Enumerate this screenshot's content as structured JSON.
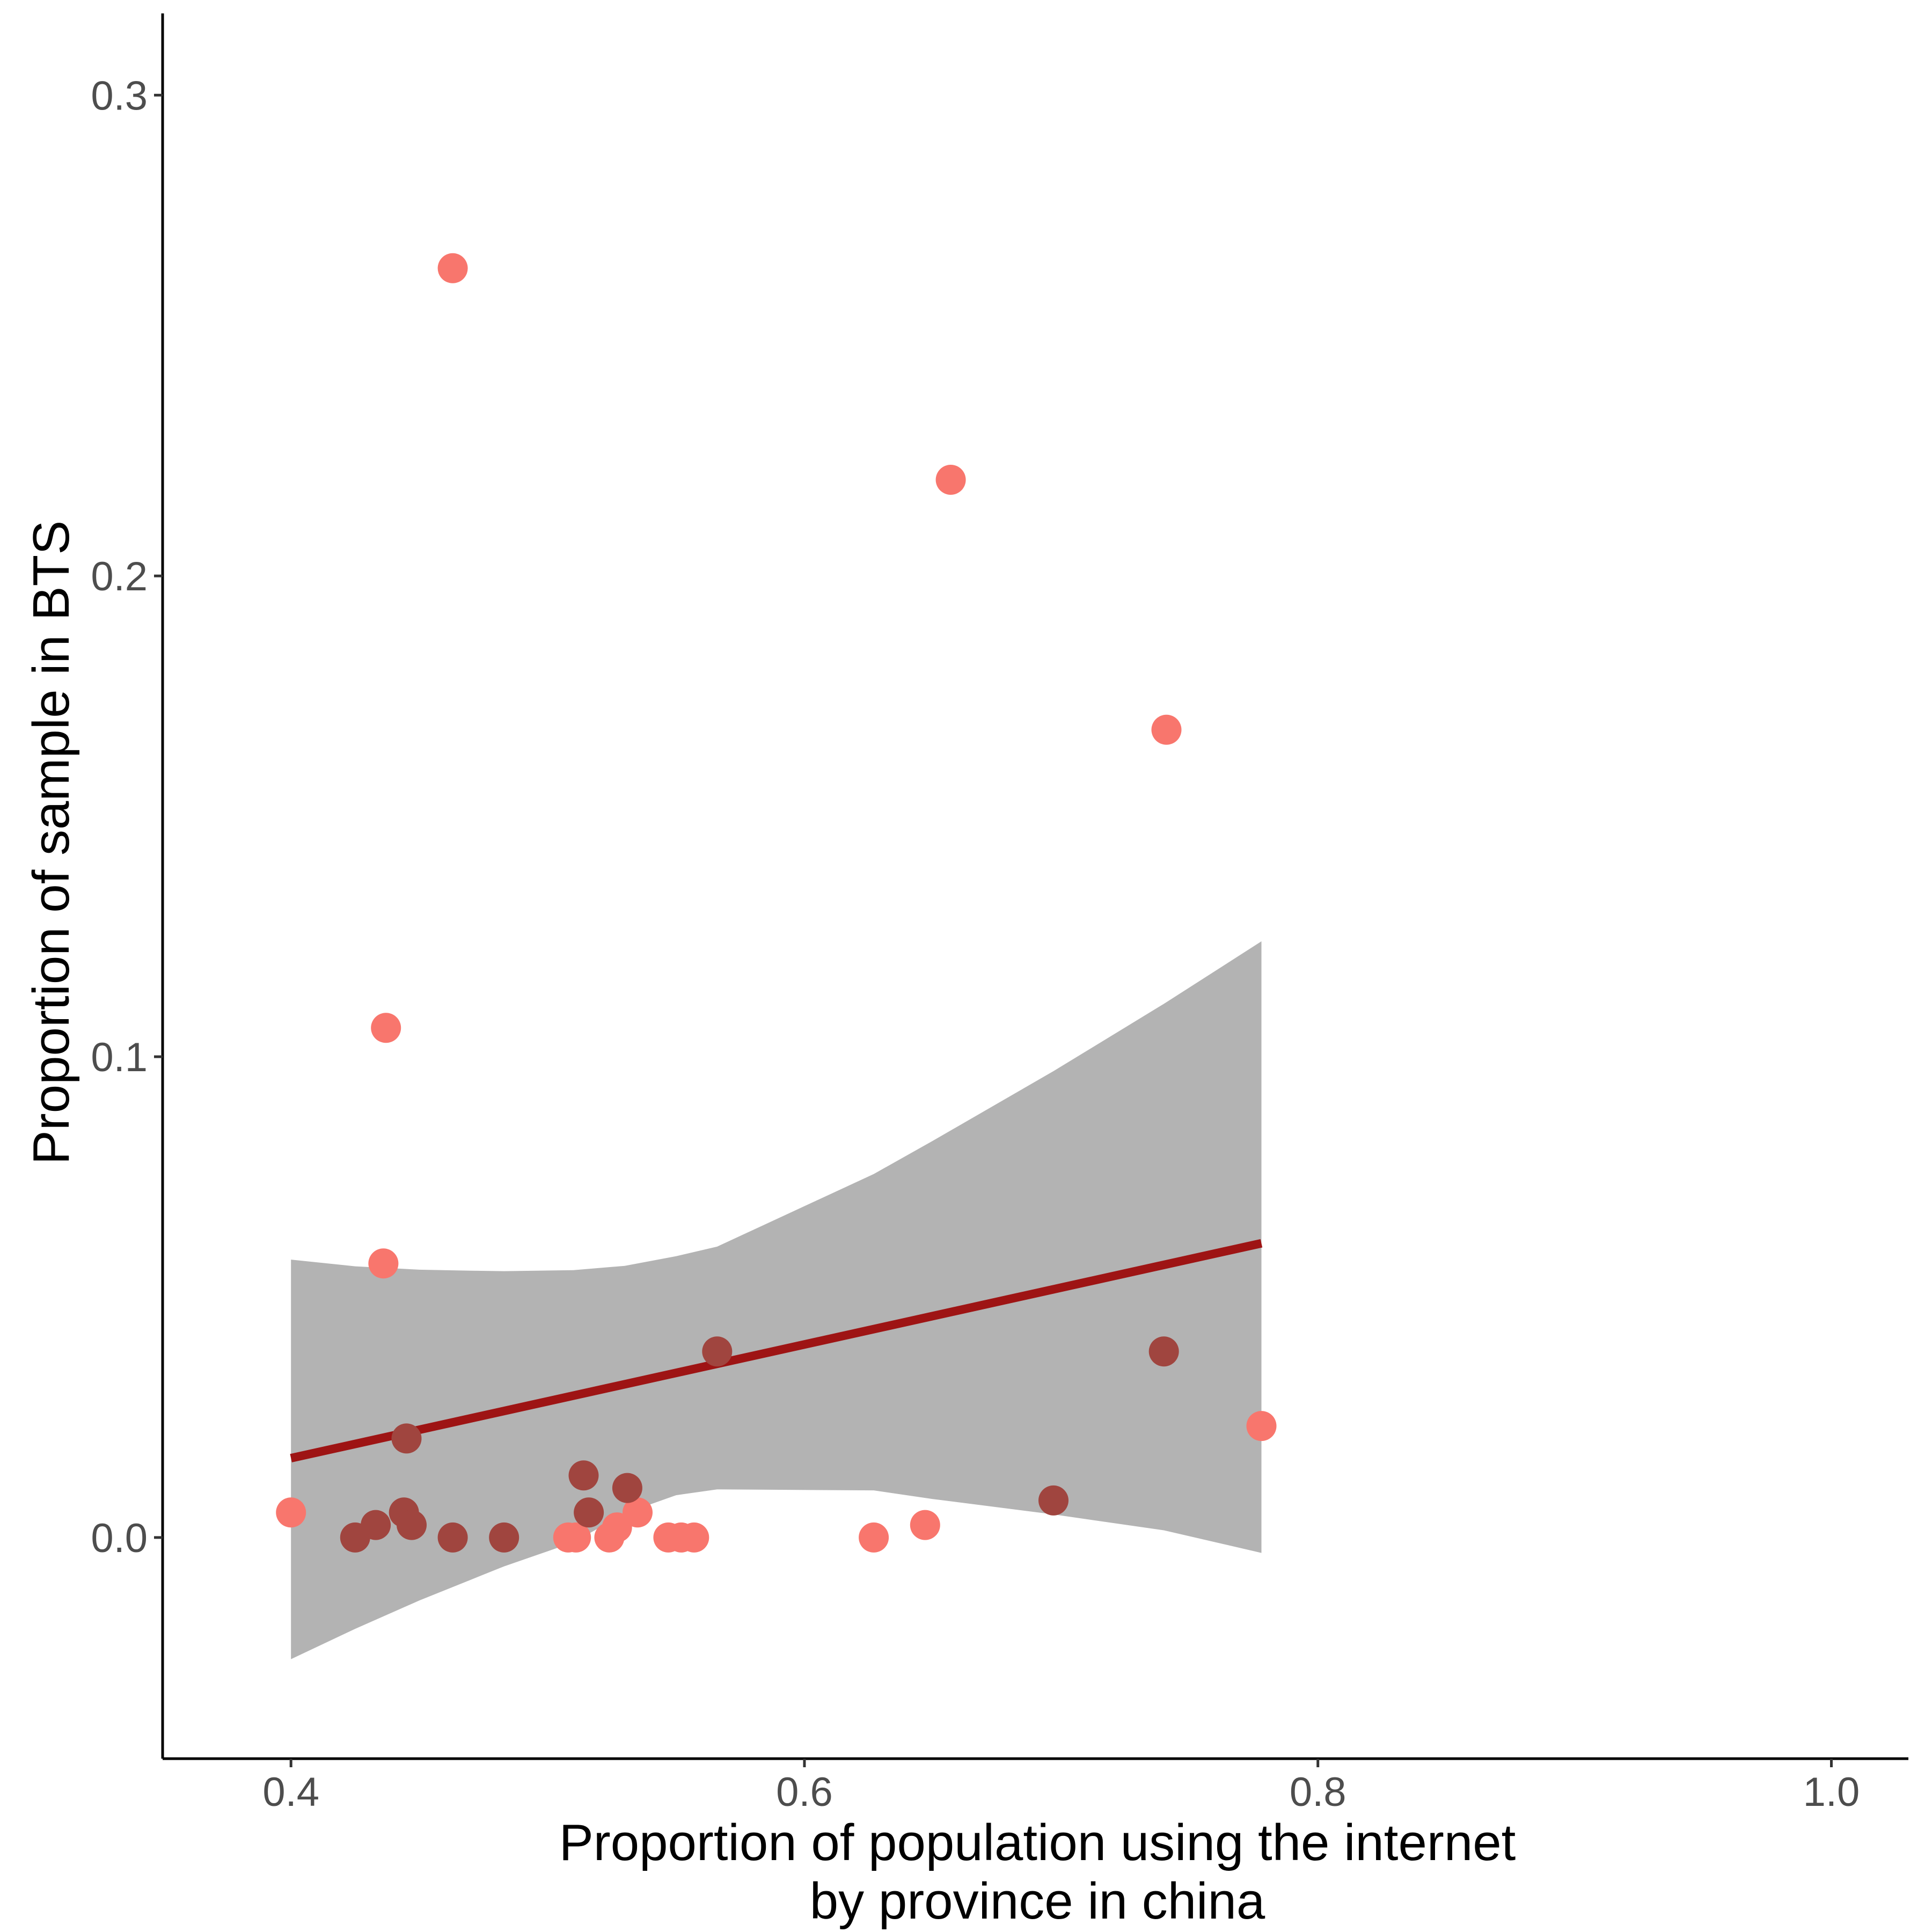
{
  "chart_data": {
    "type": "scatter",
    "title": "",
    "xlabel_lines": [
      "Proportion of population using the internet",
      "by province in china"
    ],
    "ylabel": "Proportion of sample in BTS",
    "xlim": [
      0.35,
      1.03
    ],
    "ylim": [
      -0.046,
      0.317
    ],
    "x_ticks": [
      0.4,
      0.6,
      0.8,
      1.0
    ],
    "x_tick_labels": [
      "0.4",
      "0.6",
      "0.8",
      "1.0"
    ],
    "y_ticks": [
      0.0,
      0.1,
      0.2,
      0.3
    ],
    "y_tick_labels": [
      "0.0",
      "0.1",
      "0.2",
      "0.3"
    ],
    "grid": false,
    "legend": "none",
    "colors": {
      "light_points": "#f8766d",
      "dark_points": "#a0453f",
      "fit_line": "#9e1414",
      "ribbon": "#b3b3b3"
    },
    "series": [
      {
        "style": "light",
        "points": [
          [
            0.4,
            0.0052
          ],
          [
            0.463,
            0.264
          ],
          [
            0.437,
            0.106
          ],
          [
            0.436,
            0.057
          ],
          [
            0.508,
            0.0
          ],
          [
            0.511,
            0.0
          ],
          [
            0.524,
            0.0
          ],
          [
            0.527,
            0.0021
          ],
          [
            0.535,
            0.0052
          ],
          [
            0.547,
            0.0
          ],
          [
            0.552,
            0.0
          ],
          [
            0.557,
            0.0
          ],
          [
            0.627,
            0.0
          ],
          [
            0.647,
            0.0026
          ],
          [
            0.657,
            0.22
          ],
          [
            0.741,
            0.168
          ],
          [
            0.778,
            0.0232
          ]
        ]
      },
      {
        "style": "dark",
        "points": [
          [
            0.425,
            0.0
          ],
          [
            0.433,
            0.0026
          ],
          [
            0.444,
            0.0052
          ],
          [
            0.447,
            0.0026
          ],
          [
            0.445,
            0.0206
          ],
          [
            0.463,
            0.0
          ],
          [
            0.483,
            0.0
          ],
          [
            0.514,
            0.0129
          ],
          [
            0.516,
            0.0052
          ],
          [
            0.531,
            0.0103
          ],
          [
            0.566,
            0.0387
          ],
          [
            0.697,
            0.0077
          ],
          [
            0.74,
            0.0387
          ]
        ]
      }
    ],
    "fit": {
      "x": [
        0.4,
        0.778
      ],
      "y": [
        0.0165,
        0.0612
      ]
    },
    "confidence_band": {
      "x": [
        0.4,
        0.425,
        0.45,
        0.47,
        0.483,
        0.51,
        0.53,
        0.55,
        0.566,
        0.627,
        0.65,
        0.697,
        0.74,
        0.778
      ],
      "upper": [
        0.0578,
        0.0564,
        0.0557,
        0.0555,
        0.0554,
        0.0556,
        0.0565,
        0.0585,
        0.0605,
        0.0756,
        0.0825,
        0.097,
        0.111,
        0.124
      ],
      "lower": [
        -0.0253,
        -0.019,
        -0.0131,
        -0.0088,
        -0.006,
        -0.001,
        0.005,
        0.0088,
        0.01,
        0.0098,
        0.008,
        0.0048,
        0.0015,
        -0.0032
      ]
    }
  }
}
